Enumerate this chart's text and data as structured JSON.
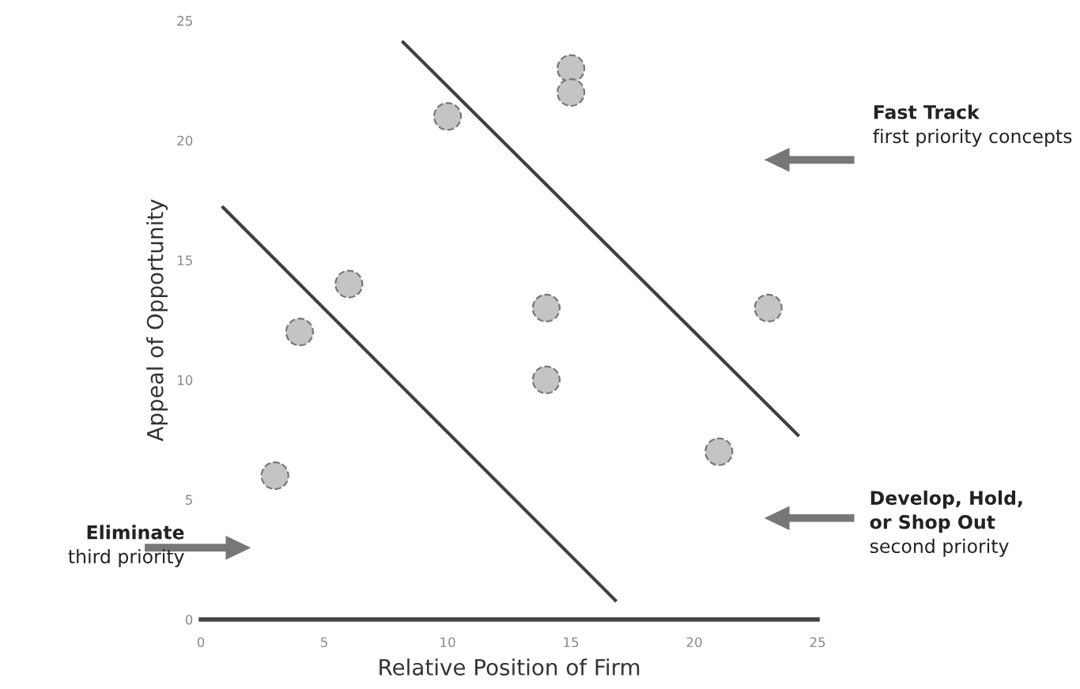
{
  "chart_data": {
    "type": "scatter",
    "xlabel": "Relative Position of Firm",
    "ylabel": "Appeal of Opportunity",
    "xlim": [
      0,
      25
    ],
    "ylim": [
      0,
      25
    ],
    "xticks": [
      0,
      5,
      10,
      15,
      20,
      25
    ],
    "yticks": [
      0,
      5,
      10,
      15,
      20,
      25
    ],
    "grid": false,
    "series": [
      {
        "marker": "circle",
        "color": "#c4c4c4",
        "x": [
          3,
          4,
          6,
          10,
          14,
          14,
          15,
          15,
          23,
          21
        ],
        "values": [
          6,
          12,
          14,
          21,
          13,
          10,
          23,
          22,
          13,
          7
        ]
      },
      {
        "type": "line",
        "marker": "none",
        "color": "#404040",
        "x": [
          0.9,
          16.8
        ],
        "values": [
          17.2,
          0.8
        ]
      },
      {
        "type": "line",
        "marker": "none",
        "color": "#404040",
        "x": [
          8.2,
          24.2
        ],
        "values": [
          24.1,
          7.7
        ]
      }
    ],
    "annotations": [
      "Fast Track",
      "first priority concepts",
      "Develop, Hold,",
      "or Shop Out",
      "second priority",
      "Eliminate",
      "third priority"
    ]
  }
}
